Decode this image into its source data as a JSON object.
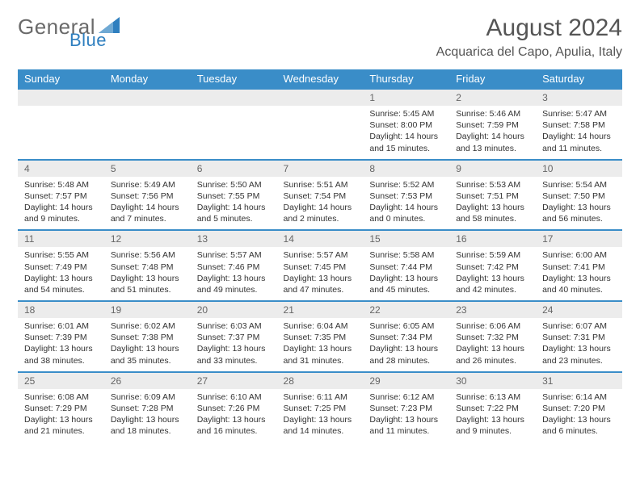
{
  "logo": {
    "text_a": "General",
    "text_b": "Blue"
  },
  "title": "August 2024",
  "location": "Acquarica del Capo, Apulia, Italy",
  "colors": {
    "header_bg": "#3a8dc8",
    "header_fg": "#ffffff",
    "band_bg": "#ececec",
    "text": "#333333",
    "border": "#3a8dc8"
  },
  "dow": [
    "Sunday",
    "Monday",
    "Tuesday",
    "Wednesday",
    "Thursday",
    "Friday",
    "Saturday"
  ],
  "weeks": [
    [
      null,
      null,
      null,
      null,
      {
        "d": "1",
        "sr": "5:45 AM",
        "ss": "8:00 PM",
        "dl": "14 hours and 15 minutes."
      },
      {
        "d": "2",
        "sr": "5:46 AM",
        "ss": "7:59 PM",
        "dl": "14 hours and 13 minutes."
      },
      {
        "d": "3",
        "sr": "5:47 AM",
        "ss": "7:58 PM",
        "dl": "14 hours and 11 minutes."
      }
    ],
    [
      {
        "d": "4",
        "sr": "5:48 AM",
        "ss": "7:57 PM",
        "dl": "14 hours and 9 minutes."
      },
      {
        "d": "5",
        "sr": "5:49 AM",
        "ss": "7:56 PM",
        "dl": "14 hours and 7 minutes."
      },
      {
        "d": "6",
        "sr": "5:50 AM",
        "ss": "7:55 PM",
        "dl": "14 hours and 5 minutes."
      },
      {
        "d": "7",
        "sr": "5:51 AM",
        "ss": "7:54 PM",
        "dl": "14 hours and 2 minutes."
      },
      {
        "d": "8",
        "sr": "5:52 AM",
        "ss": "7:53 PM",
        "dl": "14 hours and 0 minutes."
      },
      {
        "d": "9",
        "sr": "5:53 AM",
        "ss": "7:51 PM",
        "dl": "13 hours and 58 minutes."
      },
      {
        "d": "10",
        "sr": "5:54 AM",
        "ss": "7:50 PM",
        "dl": "13 hours and 56 minutes."
      }
    ],
    [
      {
        "d": "11",
        "sr": "5:55 AM",
        "ss": "7:49 PM",
        "dl": "13 hours and 54 minutes."
      },
      {
        "d": "12",
        "sr": "5:56 AM",
        "ss": "7:48 PM",
        "dl": "13 hours and 51 minutes."
      },
      {
        "d": "13",
        "sr": "5:57 AM",
        "ss": "7:46 PM",
        "dl": "13 hours and 49 minutes."
      },
      {
        "d": "14",
        "sr": "5:57 AM",
        "ss": "7:45 PM",
        "dl": "13 hours and 47 minutes."
      },
      {
        "d": "15",
        "sr": "5:58 AM",
        "ss": "7:44 PM",
        "dl": "13 hours and 45 minutes."
      },
      {
        "d": "16",
        "sr": "5:59 AM",
        "ss": "7:42 PM",
        "dl": "13 hours and 42 minutes."
      },
      {
        "d": "17",
        "sr": "6:00 AM",
        "ss": "7:41 PM",
        "dl": "13 hours and 40 minutes."
      }
    ],
    [
      {
        "d": "18",
        "sr": "6:01 AM",
        "ss": "7:39 PM",
        "dl": "13 hours and 38 minutes."
      },
      {
        "d": "19",
        "sr": "6:02 AM",
        "ss": "7:38 PM",
        "dl": "13 hours and 35 minutes."
      },
      {
        "d": "20",
        "sr": "6:03 AM",
        "ss": "7:37 PM",
        "dl": "13 hours and 33 minutes."
      },
      {
        "d": "21",
        "sr": "6:04 AM",
        "ss": "7:35 PM",
        "dl": "13 hours and 31 minutes."
      },
      {
        "d": "22",
        "sr": "6:05 AM",
        "ss": "7:34 PM",
        "dl": "13 hours and 28 minutes."
      },
      {
        "d": "23",
        "sr": "6:06 AM",
        "ss": "7:32 PM",
        "dl": "13 hours and 26 minutes."
      },
      {
        "d": "24",
        "sr": "6:07 AM",
        "ss": "7:31 PM",
        "dl": "13 hours and 23 minutes."
      }
    ],
    [
      {
        "d": "25",
        "sr": "6:08 AM",
        "ss": "7:29 PM",
        "dl": "13 hours and 21 minutes."
      },
      {
        "d": "26",
        "sr": "6:09 AM",
        "ss": "7:28 PM",
        "dl": "13 hours and 18 minutes."
      },
      {
        "d": "27",
        "sr": "6:10 AM",
        "ss": "7:26 PM",
        "dl": "13 hours and 16 minutes."
      },
      {
        "d": "28",
        "sr": "6:11 AM",
        "ss": "7:25 PM",
        "dl": "13 hours and 14 minutes."
      },
      {
        "d": "29",
        "sr": "6:12 AM",
        "ss": "7:23 PM",
        "dl": "13 hours and 11 minutes."
      },
      {
        "d": "30",
        "sr": "6:13 AM",
        "ss": "7:22 PM",
        "dl": "13 hours and 9 minutes."
      },
      {
        "d": "31",
        "sr": "6:14 AM",
        "ss": "7:20 PM",
        "dl": "13 hours and 6 minutes."
      }
    ]
  ],
  "labels": {
    "sunrise": "Sunrise:",
    "sunset": "Sunset:",
    "daylight": "Daylight:"
  }
}
